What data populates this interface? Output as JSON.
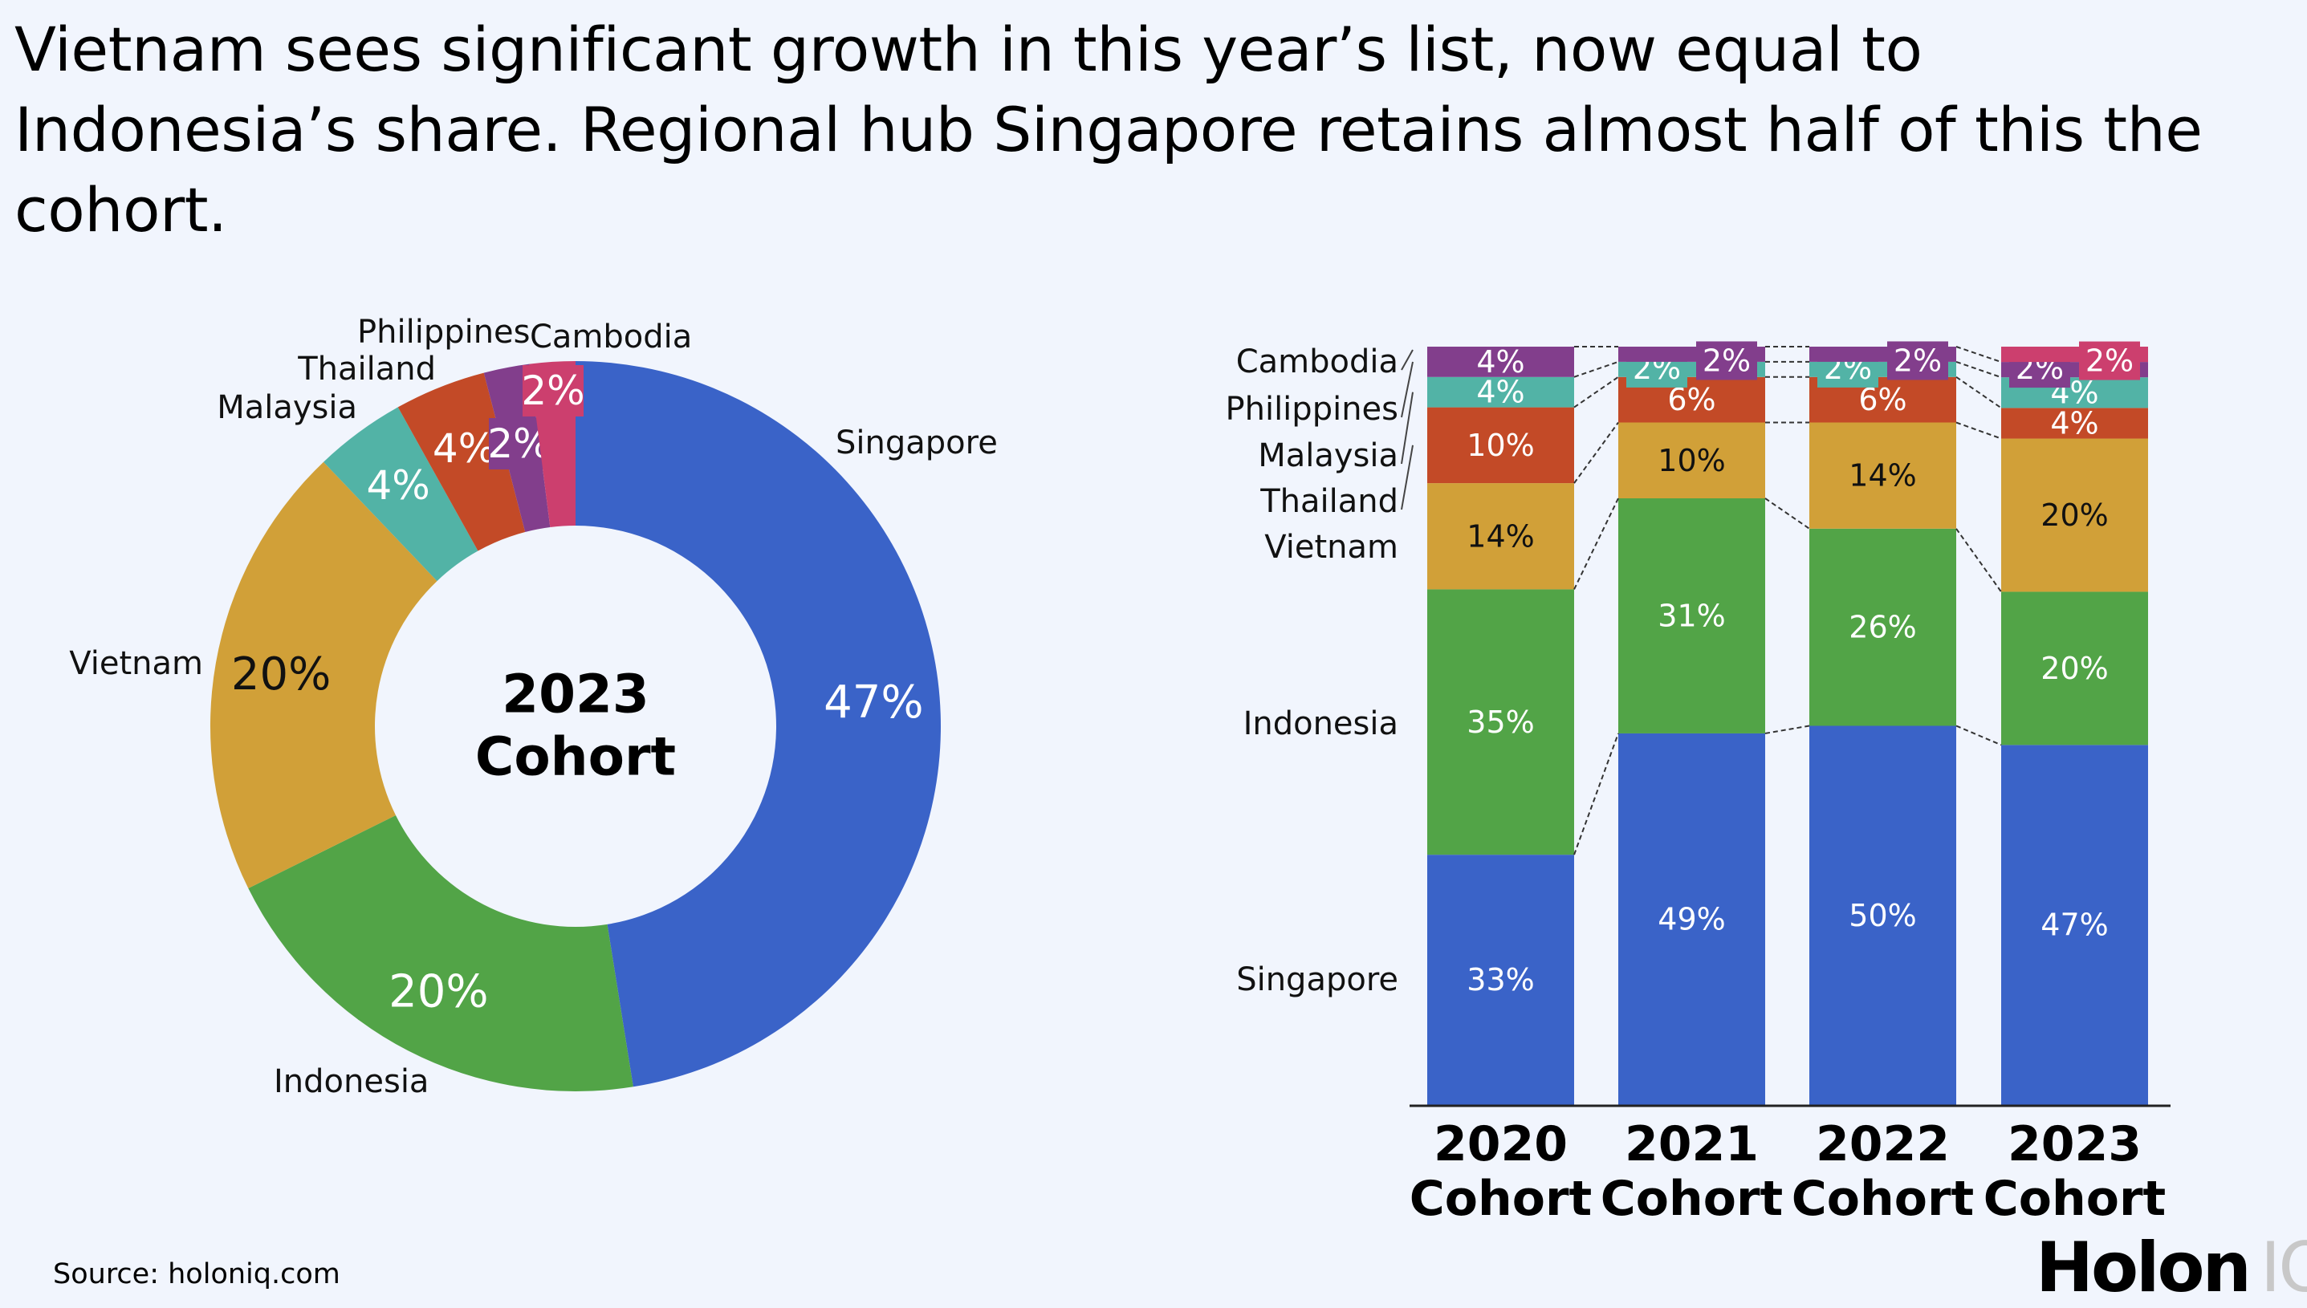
{
  "title": "Vietnam sees significant growth in this year’s list, now equal to Indonesia’s share. Regional hub Singapore retains almost half of this the cohort.",
  "source": "Source: holoniq.com",
  "logo": {
    "main": "Holon",
    "suffix": "IQ"
  },
  "colors": {
    "background": "#f1f5fd",
    "Singapore": "#3a63c8",
    "Indonesia": "#52a447",
    "Vietnam": "#d1a038",
    "Thailand": "#c34a27",
    "Malaysia": "#52b3a6",
    "purple": "#823e8c",
    "pink": "#cc3f6e"
  },
  "chart_data": [
    {
      "type": "pie",
      "style": "donut",
      "center_label": [
        "2023",
        "Cohort"
      ],
      "slices": [
        {
          "label": "Singapore",
          "value": 47,
          "text": "47%",
          "color": "#3a63c8"
        },
        {
          "label": "Indonesia",
          "value": 20,
          "text": "20%",
          "color": "#52a447"
        },
        {
          "label": "Vietnam",
          "value": 20,
          "text": "20%",
          "color": "#d1a038"
        },
        {
          "label": "Malaysia",
          "value": 4,
          "text": "4%",
          "color": "#52b3a6"
        },
        {
          "label": "Thailand",
          "value": 4,
          "text": "4%",
          "color": "#c34a27"
        },
        {
          "label": "Philippines",
          "value": 2,
          "text": "2%",
          "color": "#823e8c"
        },
        {
          "label": "Cambodia",
          "value": 2,
          "text": "2%",
          "color": "#cc3f6e"
        }
      ]
    },
    {
      "type": "bar",
      "stacked": true,
      "categories": [
        [
          "2020",
          "Cohort"
        ],
        [
          "2021",
          "Cohort"
        ],
        [
          "2022",
          "Cohort"
        ],
        [
          "2023",
          "Cohort"
        ]
      ],
      "legend_labels": [
        "Cambodia",
        "Philippines",
        "Malaysia",
        "Thailand",
        "Vietnam",
        "Indonesia",
        "Singapore"
      ],
      "bars": [
        [
          {
            "value": 33,
            "color": "#3a63c8"
          },
          {
            "value": 35,
            "color": "#52a447"
          },
          {
            "value": 14,
            "color": "#d1a038"
          },
          {
            "value": 10,
            "color": "#c34a27"
          },
          {
            "value": 4,
            "color": "#52b3a6"
          },
          {
            "value": 4,
            "color": "#823e8c"
          }
        ],
        [
          {
            "value": 49,
            "color": "#3a63c8"
          },
          {
            "value": 31,
            "color": "#52a447"
          },
          {
            "value": 10,
            "color": "#d1a038"
          },
          {
            "value": 6,
            "color": "#c34a27"
          },
          {
            "value": 2,
            "color": "#52b3a6"
          },
          {
            "value": 2,
            "color": "#823e8c"
          }
        ],
        [
          {
            "value": 50,
            "color": "#3a63c8"
          },
          {
            "value": 26,
            "color": "#52a447"
          },
          {
            "value": 14,
            "color": "#d1a038"
          },
          {
            "value": 6,
            "color": "#c34a27"
          },
          {
            "value": 2,
            "color": "#52b3a6"
          },
          {
            "value": 2,
            "color": "#823e8c"
          }
        ],
        [
          {
            "value": 47,
            "color": "#3a63c8"
          },
          {
            "value": 20,
            "color": "#52a447"
          },
          {
            "value": 20,
            "color": "#d1a038"
          },
          {
            "value": 4,
            "color": "#c34a27"
          },
          {
            "value": 4,
            "color": "#52b3a6"
          },
          {
            "value": 2,
            "color": "#823e8c"
          },
          {
            "value": 2,
            "color": "#cc3f6e"
          }
        ]
      ]
    }
  ]
}
